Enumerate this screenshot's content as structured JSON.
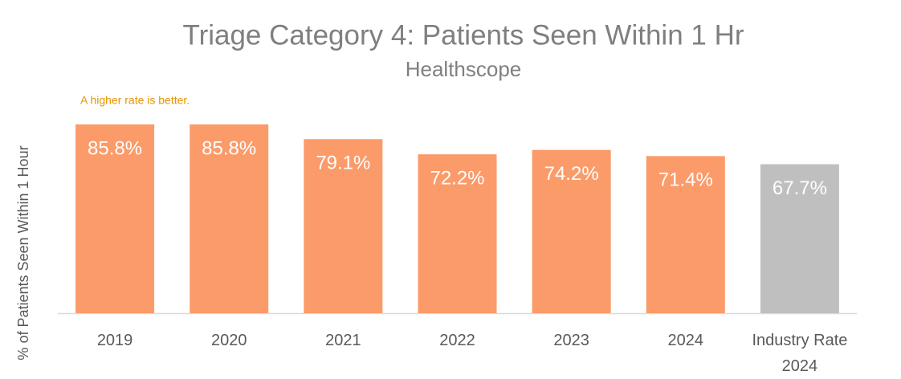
{
  "chart_data": {
    "type": "bar",
    "title": "Triage Category 4: Patients Seen Within 1 Hr",
    "subtitle": "Healthscope",
    "annotation": "A higher rate is better.",
    "y_label": "% of  Patients Seen Within 1 Hour",
    "categories": [
      "2019",
      "2020",
      "2021",
      "2022",
      "2023",
      "2024",
      "Industry Rate 2024"
    ],
    "values": [
      85.8,
      85.8,
      79.1,
      72.2,
      74.2,
      71.4,
      67.7
    ],
    "value_labels": [
      "85.8%",
      "85.8%",
      "79.1%",
      "72.2%",
      "74.2%",
      "71.4%",
      "67.7%"
    ],
    "colors": [
      "#fb9b69",
      "#fb9b69",
      "#fb9b69",
      "#fb9b69",
      "#fb9b69",
      "#fb9b69",
      "#bfbfbf"
    ],
    "ylim": [
      0,
      100
    ]
  }
}
